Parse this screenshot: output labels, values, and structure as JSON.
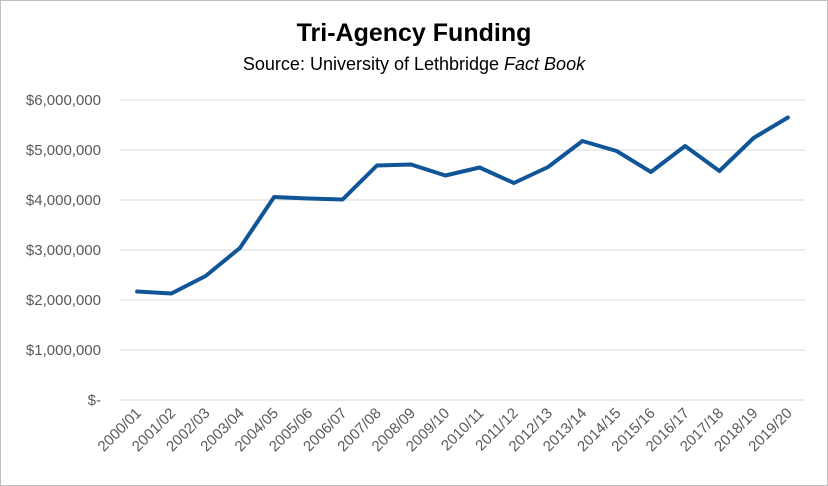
{
  "chart_data": {
    "type": "line",
    "title": "Tri-Agency Funding",
    "subtitle_prefix": "Source: University of Lethbridge ",
    "subtitle_italic": "Fact Book",
    "xlabel": "",
    "ylabel": "",
    "categories": [
      "2000/01",
      "2001/02",
      "2002/03",
      "2003/04",
      "2004/05",
      "2005/06",
      "2006/07",
      "2007/08",
      "2008/09",
      "2009/10",
      "2010/11",
      "2011/12",
      "2012/13",
      "2013/14",
      "2014/15",
      "2015/16",
      "2016/17",
      "2017/18",
      "2018/19",
      "2019/20"
    ],
    "series": [
      {
        "values": [
          2170000,
          2130000,
          2480000,
          3040000,
          4060000,
          4030000,
          4010000,
          4690000,
          4710000,
          4490000,
          4650000,
          4340000,
          4660000,
          5180000,
          4980000,
          4560000,
          5080000,
          4580000,
          5240000,
          5650000
        ],
        "color": "#0f5597"
      }
    ],
    "ylim": [
      0,
      6000000
    ],
    "yticks": [
      0,
      1000000,
      2000000,
      3000000,
      4000000,
      5000000,
      6000000
    ],
    "ytick_labels": [
      "$-",
      "$1,000,000",
      "$2,000,000",
      "$3,000,000",
      "$4,000,000",
      "$5,000,000",
      "$6,000,000"
    ],
    "grid": true,
    "legend": "none"
  },
  "colors": {
    "line": "#0f5597",
    "grid": "#d9d9d9",
    "tick_text": "#595959"
  }
}
